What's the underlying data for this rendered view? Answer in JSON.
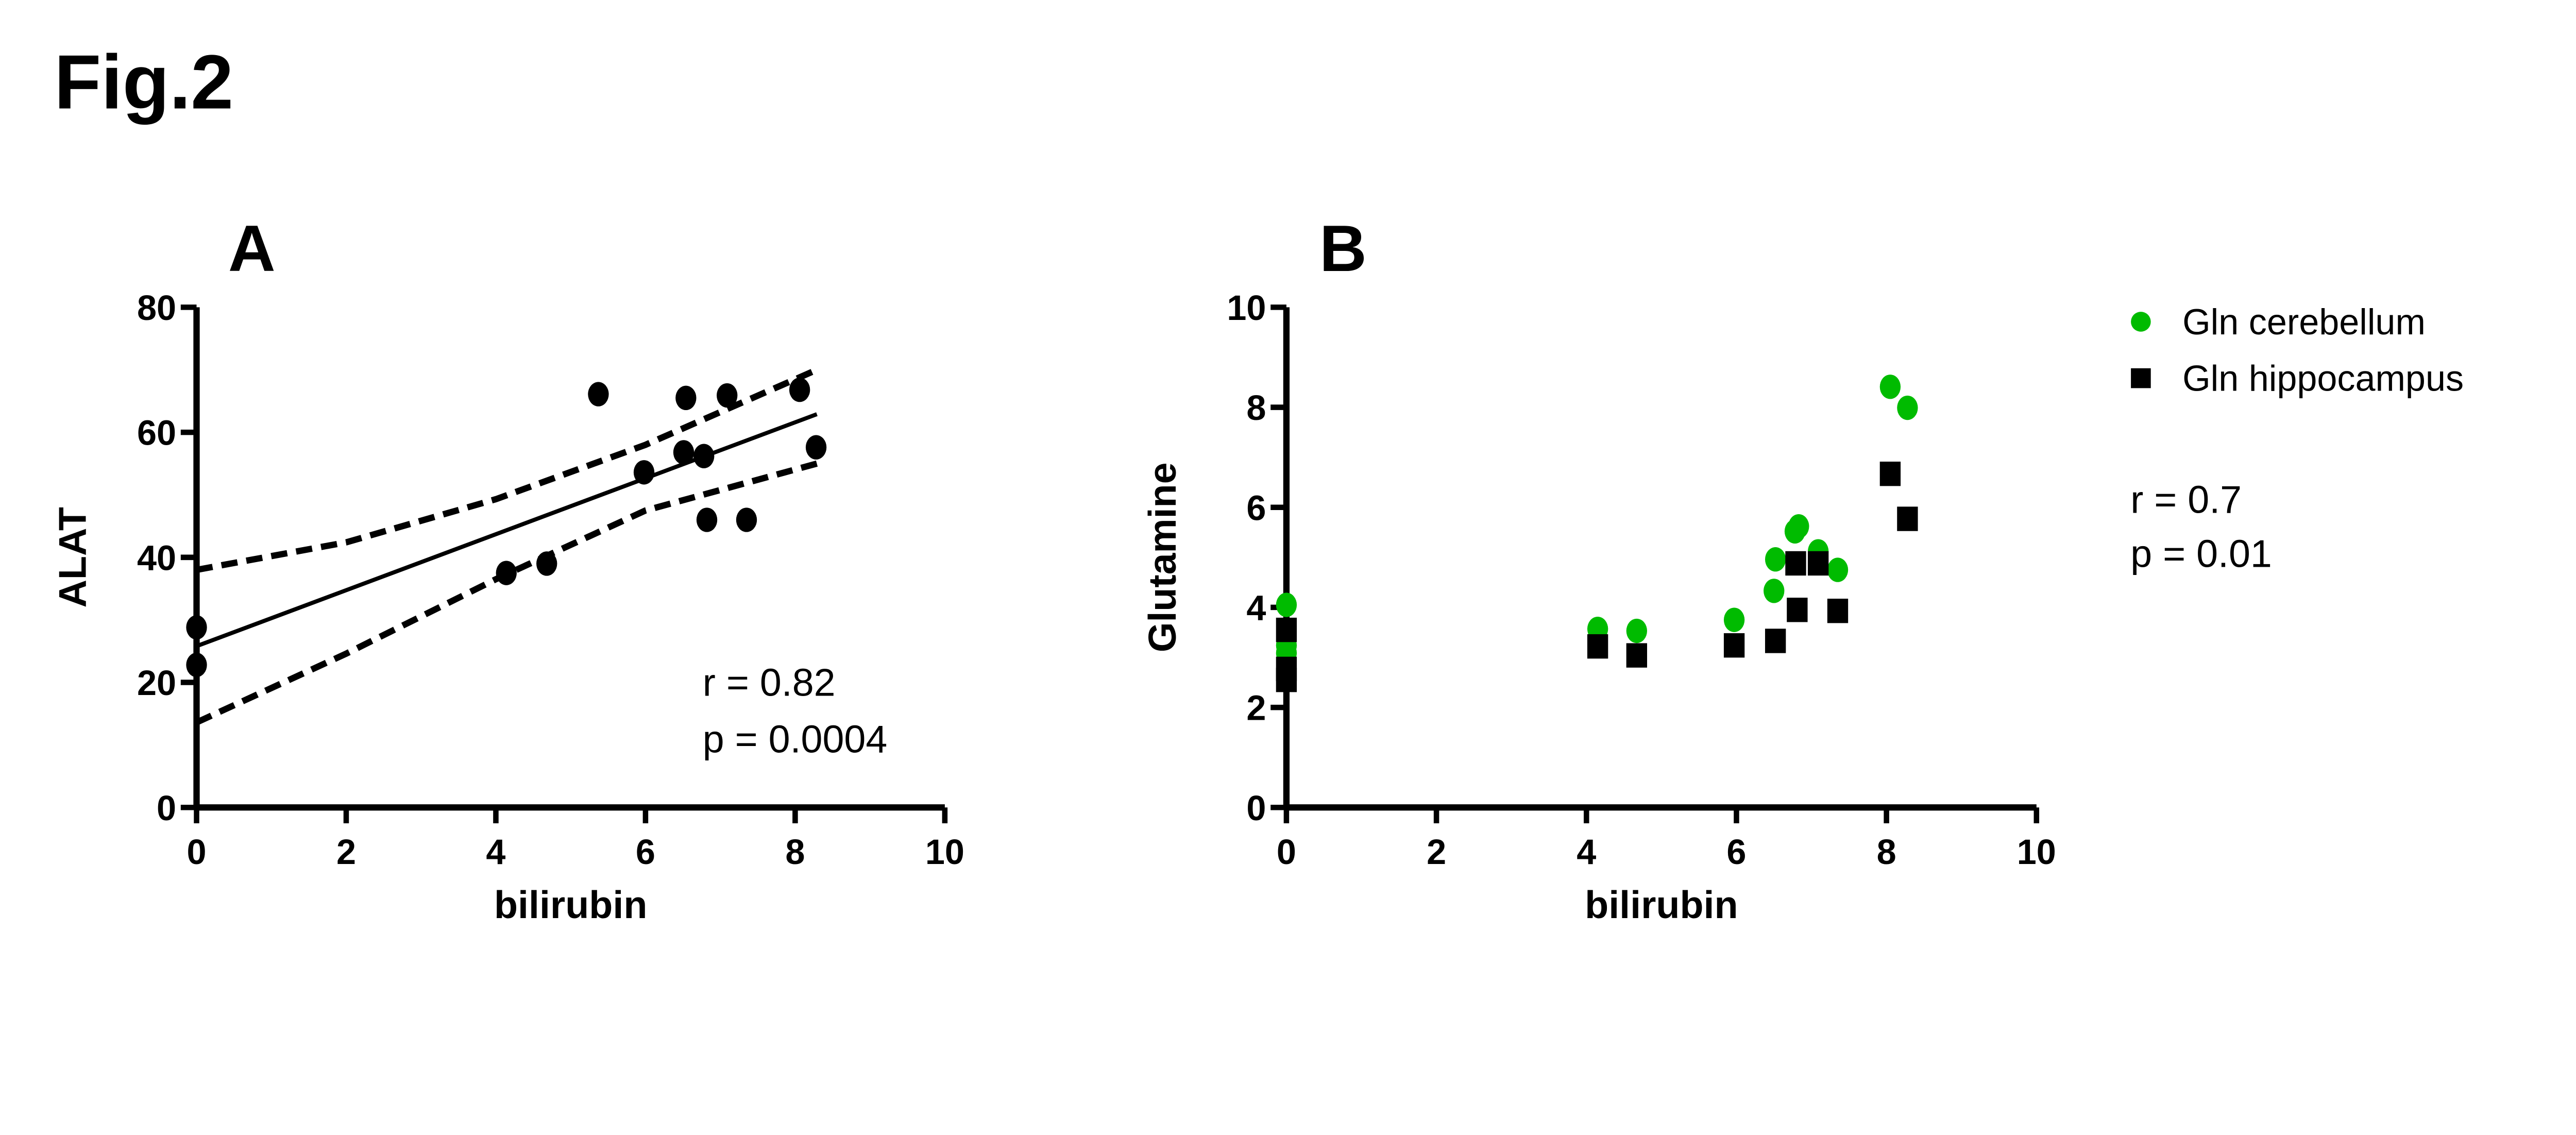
{
  "figure_title": "Fig.2",
  "chart_data": [
    {
      "panel": "A",
      "type": "scatter",
      "xlabel": "bilirubin",
      "ylabel": "ALAT",
      "xlim": [
        0,
        10
      ],
      "ylim": [
        0,
        80
      ],
      "xticks": [
        "0",
        "2",
        "4",
        "6",
        "8",
        "10"
      ],
      "yticks": [
        "0",
        "20",
        "40",
        "60",
        "80"
      ],
      "points": [
        {
          "x": 0,
          "y": 28.8
        },
        {
          "x": 0,
          "y": 22.8
        },
        {
          "x": 4.14,
          "y": 37.5
        },
        {
          "x": 4.68,
          "y": 39.0
        },
        {
          "x": 5.37,
          "y": 66.1
        },
        {
          "x": 5.98,
          "y": 53.6
        },
        {
          "x": 6.54,
          "y": 65.5
        },
        {
          "x": 6.51,
          "y": 56.8
        },
        {
          "x": 6.78,
          "y": 56.2
        },
        {
          "x": 6.82,
          "y": 46.0
        },
        {
          "x": 7.09,
          "y": 65.9
        },
        {
          "x": 7.35,
          "y": 46.0
        },
        {
          "x": 8.06,
          "y": 66.8
        },
        {
          "x": 8.28,
          "y": 57.6
        }
      ],
      "regression": {
        "x": [
          0,
          8.29
        ],
        "y": [
          25.8,
          62.9
        ]
      },
      "ci_upper": {
        "x": [
          0,
          2,
          4,
          6,
          8.29
        ],
        "y": [
          38,
          42.4,
          49.3,
          58,
          70
        ]
      },
      "ci_lower": {
        "x": [
          0,
          2,
          4,
          6,
          8.29
        ],
        "y": [
          13.6,
          24.6,
          36.5,
          47.5,
          55
        ]
      },
      "annotations": [
        "r = 0.82",
        "p = 0.0004"
      ],
      "color": "#000000"
    },
    {
      "panel": "B",
      "type": "scatter",
      "xlabel": "bilirubin",
      "ylabel": "Glutamine",
      "xlim": [
        0,
        10
      ],
      "ylim": [
        0,
        10
      ],
      "xticks": [
        "0",
        "2",
        "4",
        "6",
        "8",
        "10"
      ],
      "yticks": [
        "0",
        "2",
        "4",
        "6",
        "8",
        "10"
      ],
      "legend_position": "top-right",
      "series": [
        {
          "name": "Gln cerebellum",
          "marker": "circle",
          "color": "#00bb00",
          "points": [
            {
              "x": 0,
              "y": 4.05
            },
            {
              "x": 0,
              "y": 3.24
            },
            {
              "x": 0,
              "y": 3.09
            },
            {
              "x": 4.15,
              "y": 3.57
            },
            {
              "x": 4.67,
              "y": 3.53
            },
            {
              "x": 5.97,
              "y": 3.75
            },
            {
              "x": 6.5,
              "y": 4.33
            },
            {
              "x": 6.52,
              "y": 4.96
            },
            {
              "x": 6.78,
              "y": 5.52
            },
            {
              "x": 6.83,
              "y": 5.62
            },
            {
              "x": 7.09,
              "y": 5.12
            },
            {
              "x": 7.35,
              "y": 4.75
            },
            {
              "x": 8.05,
              "y": 8.41
            },
            {
              "x": 8.28,
              "y": 7.99
            }
          ]
        },
        {
          "name": "Gln hippocampus",
          "marker": "square",
          "color": "#000000",
          "points": [
            {
              "x": 0,
              "y": 3.55
            },
            {
              "x": 0,
              "y": 2.77
            },
            {
              "x": 0,
              "y": 2.55
            },
            {
              "x": 4.15,
              "y": 3.22
            },
            {
              "x": 4.67,
              "y": 3.04
            },
            {
              "x": 5.97,
              "y": 3.24
            },
            {
              "x": 6.52,
              "y": 3.33
            },
            {
              "x": 6.79,
              "y": 4.88
            },
            {
              "x": 7.09,
              "y": 4.88
            },
            {
              "x": 6.81,
              "y": 3.95
            },
            {
              "x": 7.35,
              "y": 3.93
            },
            {
              "x": 8.05,
              "y": 6.67
            },
            {
              "x": 8.28,
              "y": 5.77
            }
          ]
        }
      ],
      "annotations": [
        "r = 0.7",
        "p = 0.01"
      ]
    }
  ]
}
